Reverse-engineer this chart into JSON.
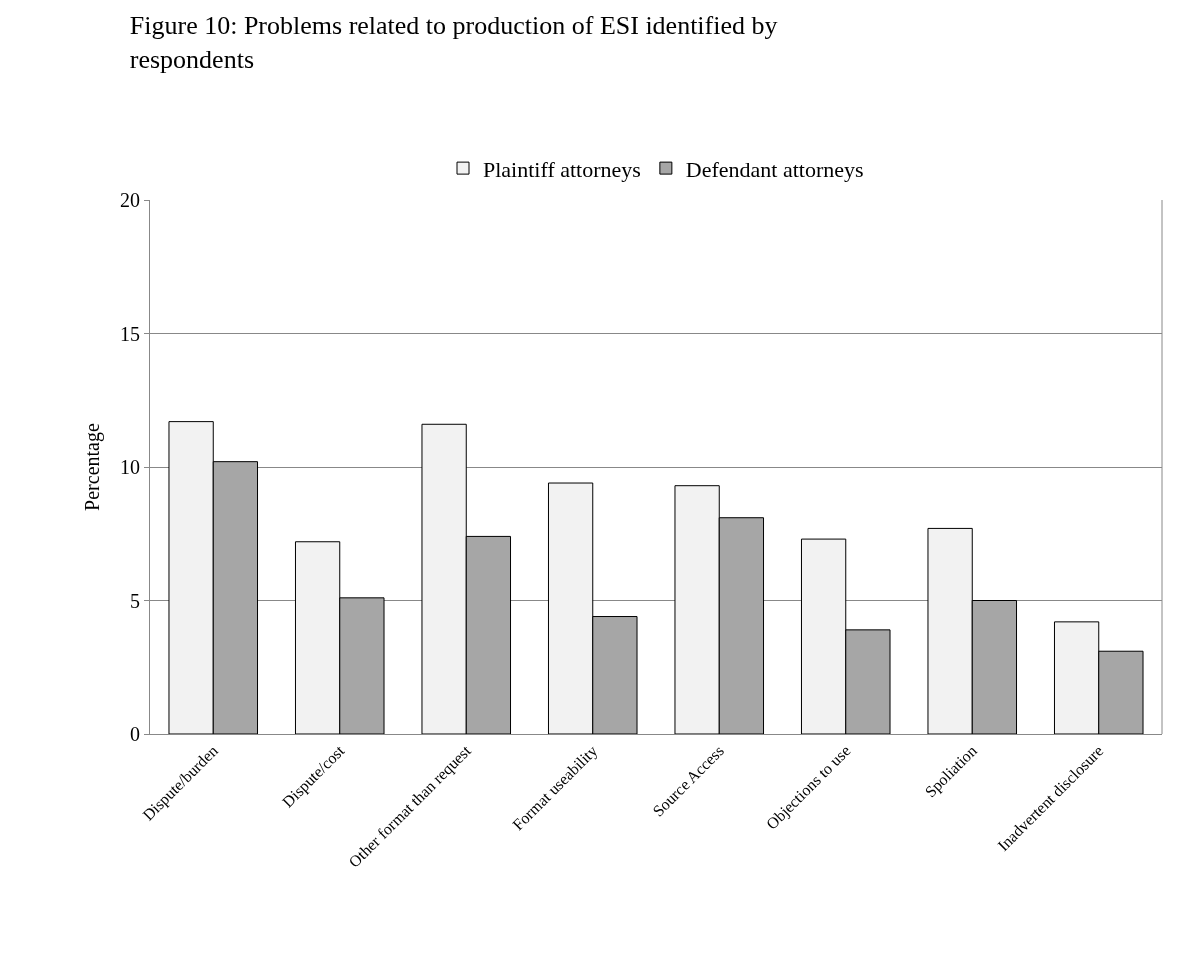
{
  "chart_data": {
    "type": "bar",
    "title": "Figure 10: Problems related to production of ESI identified by respondents",
    "ylabel": "Percentage",
    "categories": [
      "Dispute/burden",
      "Dispute/cost",
      "Other format than request",
      "Format useability",
      "Source Access",
      "Objections to use",
      "Spoliation",
      "Inadvertent disclosure"
    ],
    "series": [
      {
        "name": "Plaintiff attorneys",
        "color": "#f2f2f2",
        "values": [
          11.7,
          7.2,
          11.6,
          9.4,
          9.3,
          7.3,
          7.7,
          4.2
        ]
      },
      {
        "name": "Defendant attorneys",
        "color": "#a6a6a6",
        "values": [
          10.2,
          5.1,
          7.4,
          4.4,
          8.1,
          3.9,
          5.0,
          3.1
        ]
      }
    ],
    "ylim": [
      0,
      20
    ],
    "yticks": [
      0,
      5,
      10,
      15,
      20
    ],
    "grid": "y",
    "legend": "top"
  }
}
